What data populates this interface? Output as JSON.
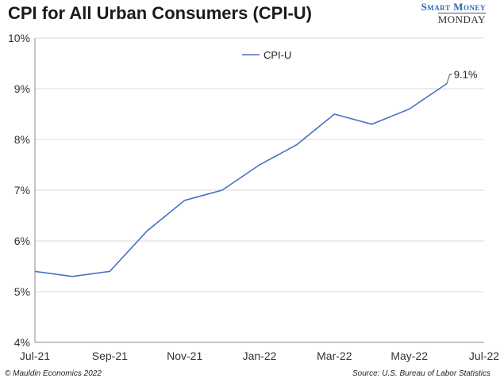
{
  "title": "CPI for All Urban Consumers (CPI-U)",
  "brand": {
    "line1": "Smart Money",
    "line2": "MONDAY"
  },
  "footer": {
    "left": "© Mauldin Economics 2022",
    "right": "Source: U.S. Bureau of Labor Statistics"
  },
  "colors": {
    "series": "#4472c4",
    "grid": "#d9d9d9",
    "axis": "#888888"
  },
  "chart_data": {
    "type": "line",
    "title": "CPI for All Urban Consumers (CPI-U)",
    "x": [
      "Jul-21",
      "Aug-21",
      "Sep-21",
      "Oct-21",
      "Nov-21",
      "Dec-21",
      "Jan-22",
      "Feb-22",
      "Mar-22",
      "Apr-22",
      "May-22",
      "Jun-22"
    ],
    "x_ticks": [
      "Jul-21",
      "Sep-21",
      "Nov-21",
      "Jan-22",
      "Mar-22",
      "May-22",
      "Jul-22"
    ],
    "y_ticks": [
      "4%",
      "5%",
      "6%",
      "7%",
      "8%",
      "9%",
      "10%"
    ],
    "ylim": [
      4,
      10
    ],
    "grid": true,
    "legend": "top-center",
    "series": [
      {
        "name": "CPI-U",
        "values": [
          5.4,
          5.3,
          5.4,
          6.2,
          6.8,
          7.0,
          7.5,
          7.9,
          8.5,
          8.3,
          8.6,
          9.1
        ]
      }
    ],
    "annotations": [
      {
        "x": "Jun-22",
        "text": "9.1%"
      }
    ]
  }
}
